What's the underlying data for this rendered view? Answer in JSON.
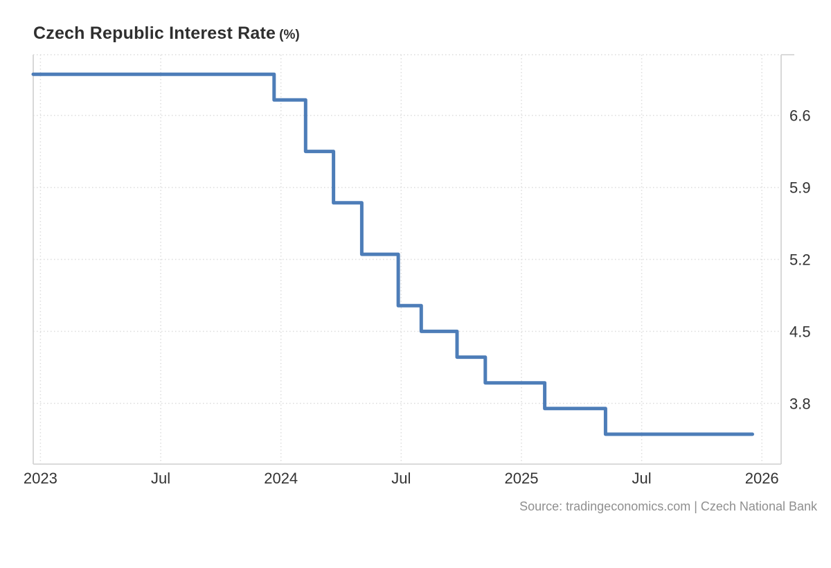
{
  "page": {
    "title": "Czech Republic Interest Rate",
    "title_unit": "(%)",
    "source": "Source: tradingeconomics.com | Czech National Bank"
  },
  "colors": {
    "line": "#4d7db8",
    "grid": "#dcdcdc",
    "axis": "#d4d4d4",
    "title_text": "#2f2f2f",
    "tick_text": "#333333",
    "source_text": "#8f8f8f",
    "background": "#ffffff"
  },
  "chart_data": {
    "type": "line",
    "subtype": "step-after",
    "title": "Czech Republic Interest Rate (%)",
    "xlabel": "",
    "ylabel": "%",
    "grid": true,
    "legend": false,
    "xlim": [
      2022.97,
      2026.08
    ],
    "ylim": [
      3.21,
      7.19
    ],
    "x_ticks": [
      {
        "value": 2023.0,
        "label": "2023"
      },
      {
        "value": 2023.5,
        "label": "Jul"
      },
      {
        "value": 2024.0,
        "label": "2024"
      },
      {
        "value": 2024.5,
        "label": "Jul"
      },
      {
        "value": 2025.0,
        "label": "2025"
      },
      {
        "value": 2025.5,
        "label": "Jul"
      },
      {
        "value": 2026.0,
        "label": "2026"
      }
    ],
    "y_ticks": [
      {
        "value": 6.6,
        "label": "6.6"
      },
      {
        "value": 5.9,
        "label": "5.9"
      },
      {
        "value": 5.2,
        "label": "5.2"
      },
      {
        "value": 4.5,
        "label": "4.5"
      },
      {
        "value": 3.8,
        "label": "3.8"
      }
    ],
    "series": [
      {
        "name": "Czech Republic Interest Rate",
        "points": [
          {
            "date": "2023-01-01",
            "value": 7.0
          },
          {
            "date": "2023-12-21",
            "value": 6.75
          },
          {
            "date": "2024-02-08",
            "value": 6.25
          },
          {
            "date": "2024-03-20",
            "value": 5.75
          },
          {
            "date": "2024-05-02",
            "value": 5.25
          },
          {
            "date": "2024-06-27",
            "value": 4.75
          },
          {
            "date": "2024-08-01",
            "value": 4.5
          },
          {
            "date": "2024-09-25",
            "value": 4.25
          },
          {
            "date": "2024-11-07",
            "value": 4.0
          },
          {
            "date": "2025-02-06",
            "value": 3.75
          },
          {
            "date": "2025-05-07",
            "value": 3.5
          },
          {
            "date": "2025-12-17",
            "value": 3.5
          }
        ]
      }
    ]
  }
}
